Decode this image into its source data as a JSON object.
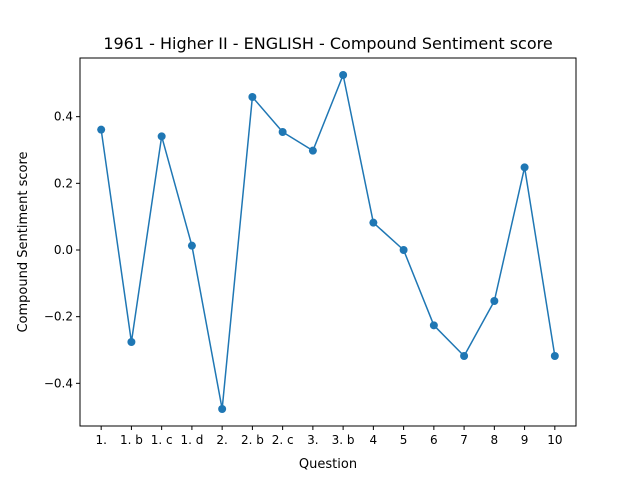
{
  "chart_data": {
    "type": "line",
    "title": "1961 - Higher II - ENGLISH - Compound Sentiment score",
    "xlabel": "Question",
    "ylabel": "Compound Sentiment score",
    "categories": [
      "1.",
      "1. b",
      "1. c",
      "1. d",
      "2.",
      "2. b",
      "2. c",
      "3.",
      "3. b",
      "4",
      "5",
      "6",
      "7",
      "8",
      "9",
      "10"
    ],
    "series": [
      {
        "values": [
          0.361,
          -0.276,
          0.341,
          0.013,
          -0.477,
          0.459,
          0.354,
          0.298,
          0.525,
          0.082,
          0.0,
          -0.226,
          -0.318,
          -0.153,
          0.248,
          -0.318
        ],
        "color": "#1f77b4",
        "marker": "circle"
      }
    ],
    "ylim": [
      -0.528,
      0.576
    ],
    "yticks": [
      -0.4,
      -0.2,
      0.0,
      0.2,
      0.4
    ],
    "ytick_labels": [
      "−0.4",
      "−0.2",
      "0.0",
      "0.2",
      "0.4"
    ],
    "grid": false,
    "legend": "none"
  }
}
